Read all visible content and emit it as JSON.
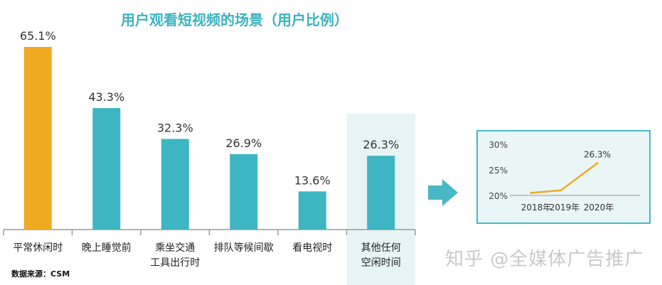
{
  "title": "用户观看短视频的场景（用户比例）",
  "source": "数据来源：CSM",
  "watermark": "知乎 @全媒体广告推广",
  "colors": {
    "highlight": "#f0aa22",
    "bar": "#3db5c2",
    "accent": "#4ab7c4",
    "title": "#3ab3c0"
  },
  "chart_data": [
    {
      "type": "bar",
      "title": "用户观看短视频的场景（用户比例）",
      "categories": [
        [
          "平常休闲时"
        ],
        [
          "晚上睡觉前"
        ],
        [
          "乘坐交通",
          "工具出行时"
        ],
        [
          "排队等候间歇"
        ],
        [
          "看电视时"
        ],
        [
          "其他任何",
          "空闲时间"
        ]
      ],
      "values": [
        65.1,
        43.3,
        32.3,
        26.9,
        13.6,
        26.3
      ],
      "value_labels": [
        "65.1%",
        "43.3%",
        "32.3%",
        "26.9%",
        "13.6%",
        "26.3%"
      ],
      "highlight_index": 0,
      "emphasized_index": 5,
      "ylim": [
        0,
        70
      ]
    },
    {
      "type": "line",
      "x": [
        "2018年",
        "2019年",
        "2020年"
      ],
      "values": [
        20.5,
        21,
        26.3
      ],
      "point_labels": [
        "",
        "",
        "26.3%"
      ],
      "yticks": [
        "30%",
        "25%",
        "20%"
      ],
      "ytick_values": [
        30,
        25,
        20
      ],
      "ylim": [
        20,
        30
      ]
    }
  ]
}
